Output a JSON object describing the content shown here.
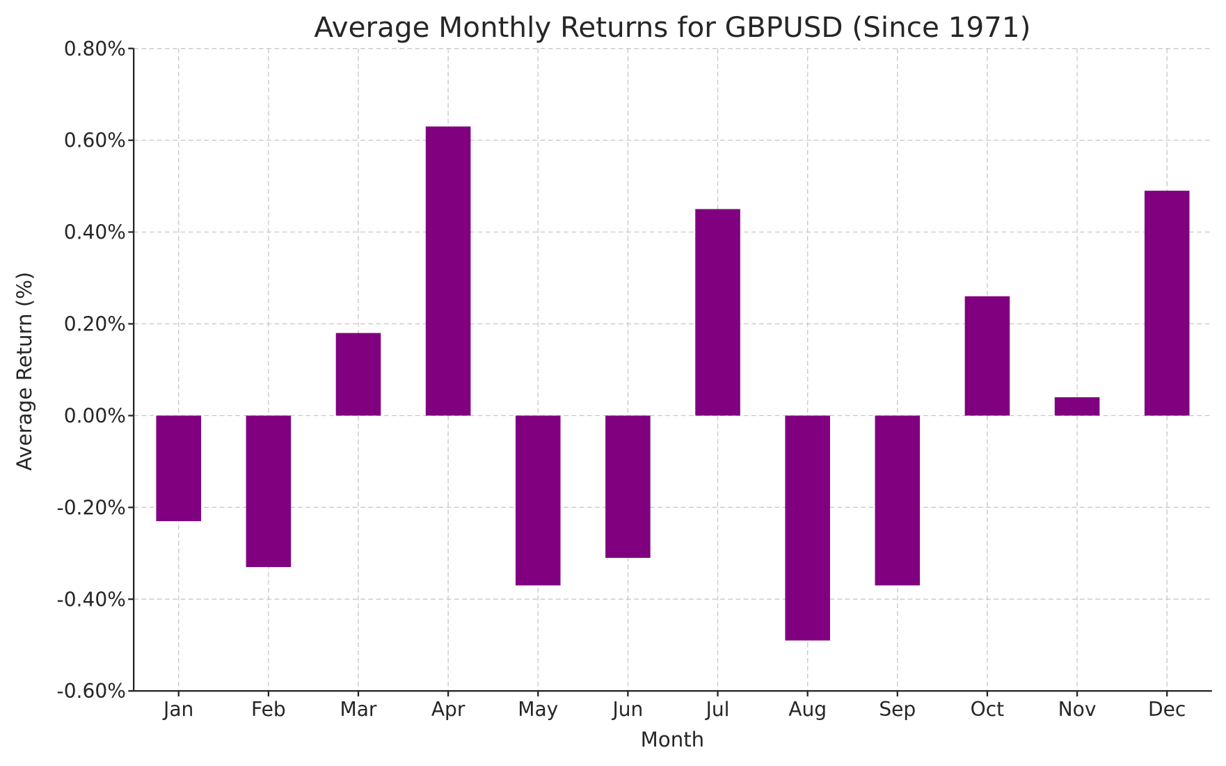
{
  "chart_data": {
    "type": "bar",
    "title": "Average Monthly Returns for GBPUSD (Since 1971)",
    "xlabel": "Month",
    "ylabel": "Average Return (%)",
    "categories": [
      "Jan",
      "Feb",
      "Mar",
      "Apr",
      "May",
      "Jun",
      "Jul",
      "Aug",
      "Sep",
      "Oct",
      "Nov",
      "Dec"
    ],
    "values": [
      -0.23,
      -0.33,
      0.18,
      0.63,
      -0.37,
      -0.31,
      0.45,
      -0.49,
      -0.37,
      0.26,
      0.04,
      0.49
    ],
    "ylim": [
      -0.6,
      0.8
    ],
    "yticks": [
      -0.6,
      -0.4,
      -0.2,
      0.0,
      0.2,
      0.4,
      0.6,
      0.8
    ],
    "ytick_labels": [
      "-0.60%",
      "-0.40%",
      "-0.20%",
      "0.00%",
      "0.20%",
      "0.40%",
      "0.60%",
      "0.80%"
    ],
    "grid": true,
    "bar_color": "#800080"
  }
}
